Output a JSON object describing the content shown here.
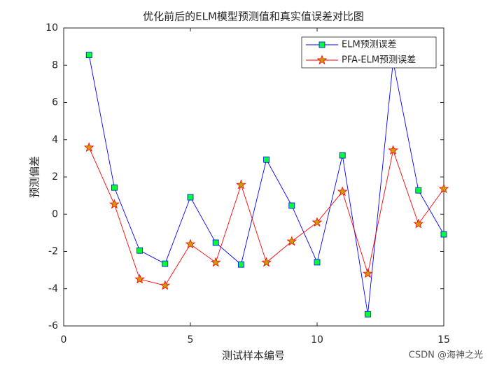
{
  "chart_data": {
    "type": "line",
    "title": "优化前后的ELM模型预测值和真实值误差对比图",
    "xlabel": "测试样本编号",
    "ylabel": "预测偏差",
    "x": [
      1,
      2,
      3,
      4,
      5,
      6,
      7,
      8,
      9,
      10,
      11,
      12,
      13,
      14,
      15
    ],
    "series": [
      {
        "name": "ELM预测误差",
        "color": "#0000ff",
        "marker": "square",
        "marker_face": "#00ff33",
        "values": [
          8.55,
          1.43,
          -1.95,
          -2.66,
          0.91,
          -1.53,
          -2.7,
          2.93,
          0.46,
          -2.58,
          3.16,
          -5.37,
          8.2,
          1.28,
          -1.08
        ]
      },
      {
        "name": "PFA-ELM预测误差",
        "color": "#ff0000",
        "marker": "star",
        "marker_face": "#c8a000",
        "values": [
          3.58,
          0.53,
          -3.49,
          -3.83,
          -1.61,
          -2.59,
          1.58,
          -2.59,
          -1.46,
          -0.44,
          1.21,
          -3.19,
          3.43,
          -0.52,
          1.36
        ]
      }
    ],
    "xlim": [
      0,
      15
    ],
    "xticks": [
      0,
      5,
      10,
      15
    ],
    "ylim": [
      -6,
      10
    ],
    "yticks": [
      -6,
      -4,
      -2,
      0,
      2,
      4,
      6,
      8,
      10
    ],
    "legend": "northeast",
    "watermark": "CSDN @海神之光"
  }
}
